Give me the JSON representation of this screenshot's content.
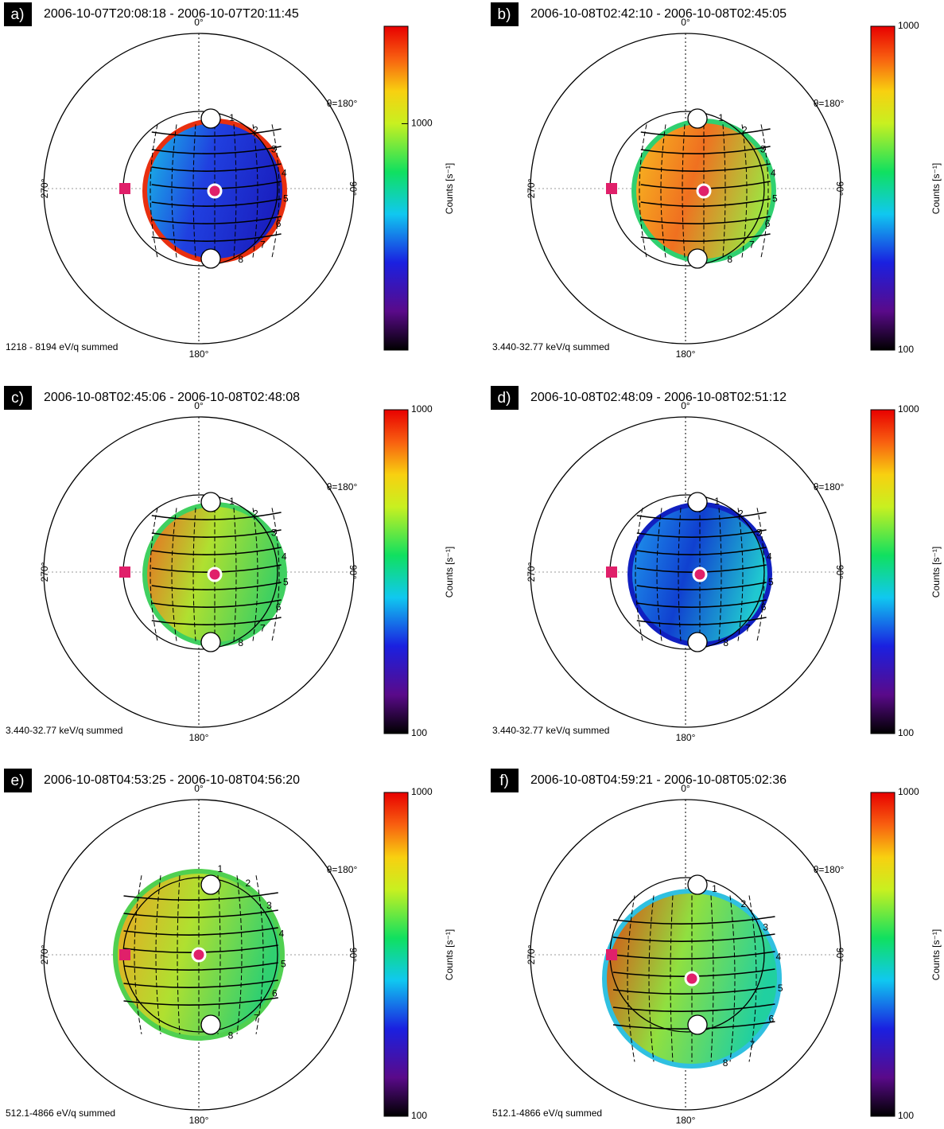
{
  "chart_data": [
    {
      "type": "skymap",
      "panel_label": "a)",
      "title": "2006-10-07T20:08:18 - 2006-10-07T20:11:45",
      "angle_labels": {
        "top": "0°",
        "left": "270°",
        "right": "90°",
        "bottom": "180°",
        "theta": "θ=180°"
      },
      "anode_labels": [
        "1",
        "2",
        "3",
        "4",
        "5",
        "6",
        "7",
        "8"
      ],
      "energy_label": "1218 - 8194 eV/q summed",
      "colorbar": {
        "label": "Counts [s⁻¹]",
        "log": true,
        "clim": [
          160,
          2200
        ],
        "cticks": [
          1000
        ]
      }
    },
    {
      "type": "skymap",
      "panel_label": "b)",
      "title": "2006-10-08T02:42:10 - 2006-10-08T02:45:05",
      "angle_labels": {
        "top": "0°",
        "left": "270°",
        "right": "90°",
        "bottom": "180°",
        "theta": "θ=180°"
      },
      "anode_labels": [
        "1",
        "2",
        "3",
        "4",
        "5",
        "6",
        "7",
        "8"
      ],
      "energy_label": "3.440-32.77 keV/q summed",
      "colorbar": {
        "label": "Counts [s⁻¹]",
        "log": true,
        "clim": [
          100,
          1000
        ],
        "cticks": [
          100,
          1000
        ]
      }
    },
    {
      "type": "skymap",
      "panel_label": "c)",
      "title": "2006-10-08T02:45:06 - 2006-10-08T02:48:08",
      "angle_labels": {
        "top": "0°",
        "left": "270°",
        "right": "90°",
        "bottom": "180°",
        "theta": "θ=180°"
      },
      "anode_labels": [
        "1",
        "2",
        "3",
        "4",
        "5",
        "6",
        "7",
        "8"
      ],
      "energy_label": "3.440-32.77 keV/q summed",
      "colorbar": {
        "label": "Counts [s⁻¹]",
        "log": true,
        "clim": [
          100,
          1000
        ],
        "cticks": [
          100,
          1000
        ]
      }
    },
    {
      "type": "skymap",
      "panel_label": "d)",
      "title": "2006-10-08T02:48:09 - 2006-10-08T02:51:12",
      "angle_labels": {
        "top": "0°",
        "left": "270°",
        "right": "90°",
        "bottom": "180°",
        "theta": "θ=180°"
      },
      "anode_labels": [
        "1",
        "2",
        "3",
        "4",
        "5",
        "6",
        "7",
        "8"
      ],
      "energy_label": "3.440-32.77 keV/q summed",
      "colorbar": {
        "label": "Counts [s⁻¹]",
        "log": true,
        "clim": [
          100,
          1000
        ],
        "cticks": [
          100,
          1000
        ]
      }
    },
    {
      "type": "skymap",
      "panel_label": "e)",
      "title": "2006-10-08T04:53:25 - 2006-10-08T04:56:20",
      "angle_labels": {
        "top": "0°",
        "left": "270°",
        "right": "90°",
        "bottom": "180°",
        "theta": "θ=180°"
      },
      "anode_labels": [
        "1",
        "2",
        "3",
        "4",
        "5",
        "6",
        "7",
        "8"
      ],
      "energy_label": "512.1-4866 eV/q summed",
      "colorbar": {
        "label": "Counts [s⁻¹]",
        "log": true,
        "clim": [
          100,
          1000
        ],
        "cticks": [
          100,
          1000
        ]
      }
    },
    {
      "type": "skymap",
      "panel_label": "f)",
      "title": "2006-10-08T04:59:21 - 2006-10-08T05:02:36",
      "angle_labels": {
        "top": "0°",
        "left": "270°",
        "right": "90°",
        "bottom": "180°",
        "theta": "θ=180°"
      },
      "anode_labels": [
        "1",
        "2",
        "3",
        "4",
        "5",
        "6",
        "7",
        "8"
      ],
      "energy_label": "512.1-4866 eV/q summed",
      "colorbar": {
        "label": "Counts [s⁻¹]",
        "log": true,
        "clim": [
          100,
          1000
        ],
        "cticks": [
          100,
          1000
        ]
      }
    }
  ]
}
